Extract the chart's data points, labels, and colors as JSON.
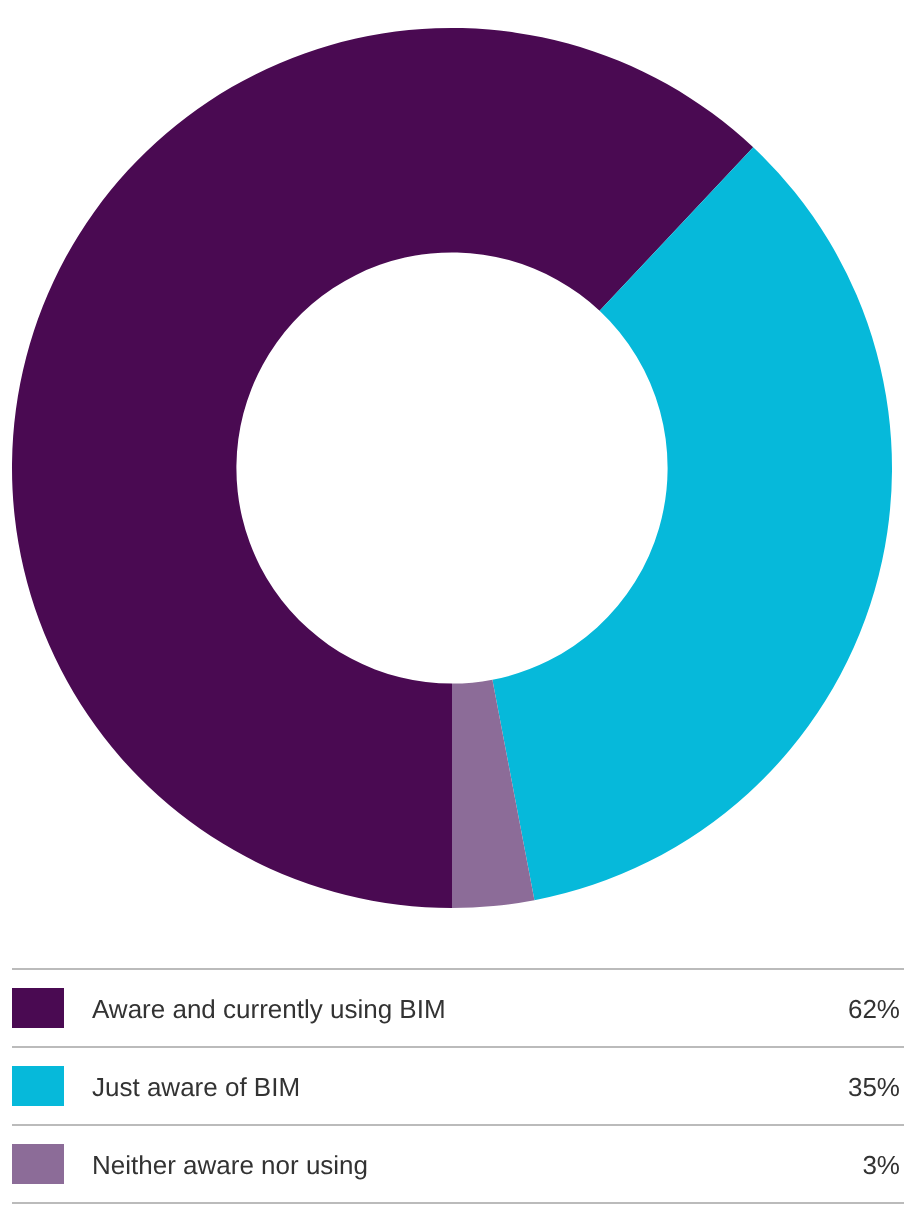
{
  "chart_data": {
    "type": "donut",
    "categories": [
      "Aware and currently using BIM",
      "Just aware of BIM",
      "Neither aware nor using"
    ],
    "values": [
      62,
      35,
      3
    ],
    "colors": [
      "#4a0a52",
      "#06b9da",
      "#8c6c98"
    ],
    "value_labels": [
      "62%",
      "35%",
      "3%"
    ],
    "legend": "bottom"
  }
}
